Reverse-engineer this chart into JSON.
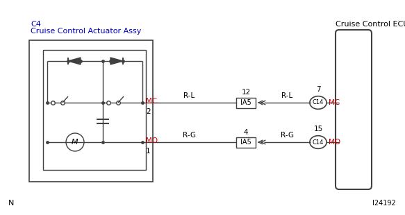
{
  "bg_color": "#ffffff",
  "line_color": "#404040",
  "blue_color": "#0000bb",
  "red_color": "#cc0000",
  "text_color": "#000000",
  "c4_label": "C4",
  "actuator_label": "Cruise Control Actuator Assy",
  "ecu_label": "Cruise Control ECU Assy",
  "mc_label": "MC",
  "mo_label": "MO",
  "wire1_label": "R-L",
  "wire2_label": "R-G",
  "ia5_label": "IA5",
  "ia5_pin12": "12",
  "ia5_pin4": "4",
  "c14_label": "C14",
  "c14_pin7": "7",
  "c14_pin15": "15",
  "pin2": "2",
  "pin1": "1",
  "n_label": "N",
  "id_label": "I24192",
  "figsize": [
    5.83,
    3.1
  ],
  "dpi": 100
}
